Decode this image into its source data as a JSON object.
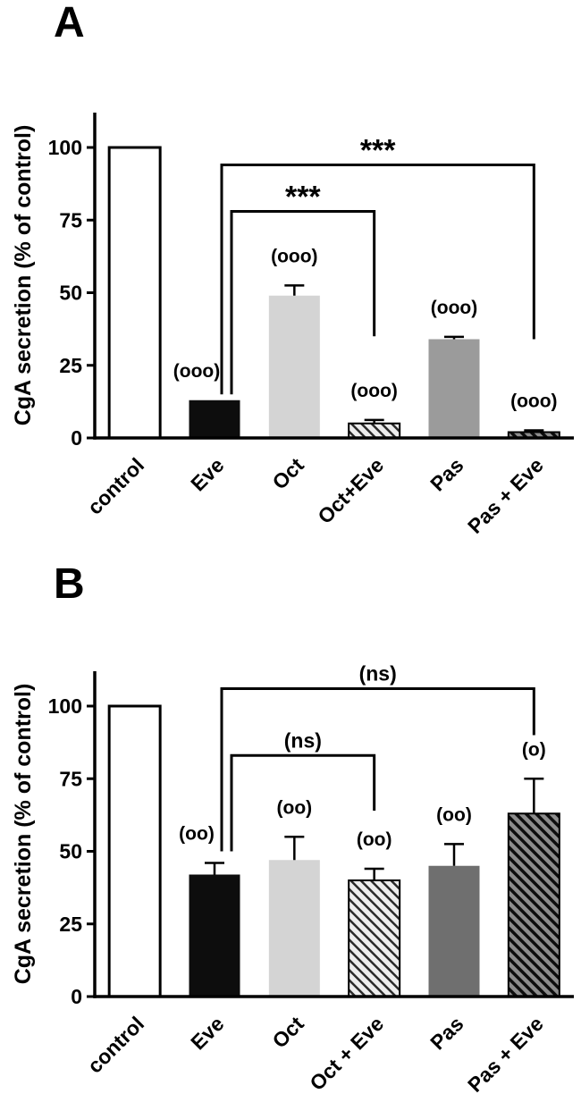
{
  "figure": {
    "background": "#ffffff",
    "panels": [
      {
        "label": "A"
      },
      {
        "label": "B"
      }
    ]
  },
  "chart_data": [
    {
      "type": "bar",
      "panel": "A",
      "title": "",
      "xlabel": "",
      "ylabel": "CgA secretion (% of control)",
      "ylim": [
        0,
        112
      ],
      "yticks": [
        0,
        25,
        50,
        75,
        100
      ],
      "grid": false,
      "legend": "none",
      "categories": [
        "control",
        "Eve",
        "Oct",
        "Oct+Eve",
        "Pas",
        "Pas + Eve"
      ],
      "values": [
        100,
        13,
        49,
        5,
        34,
        2
      ],
      "errors": [
        0,
        0,
        3.5,
        1.2,
        0.8,
        0.6
      ],
      "bar_labels": [
        "",
        "(ooo)",
        "(ooo)",
        "(ooo)",
        "(ooo)",
        "(ooo)"
      ],
      "bar_label_dx": [
        0,
        -20,
        0,
        0,
        0,
        0
      ],
      "bar_styles": [
        {
          "fill": "#ffffff",
          "stroke": "#000000",
          "stroke_width": 3,
          "hatch": false
        },
        {
          "fill": "#0d0d0d",
          "stroke": "none",
          "stroke_width": 0,
          "hatch": false
        },
        {
          "fill": "#d4d4d4",
          "stroke": "none",
          "stroke_width": 0,
          "hatch": false
        },
        {
          "fill": "#ededed",
          "stroke": "#000000",
          "stroke_width": 2,
          "hatch": true,
          "hatch_color": "#2a2a2a",
          "hatch_width": 2.5
        },
        {
          "fill": "#9b9b9b",
          "stroke": "none",
          "stroke_width": 0,
          "hatch": false
        },
        {
          "fill": "#8c8c8c",
          "stroke": "#000000",
          "stroke_width": 2,
          "hatch": true,
          "hatch_color": "#0d0d0d",
          "hatch_width": 3.5
        }
      ],
      "significance": [
        {
          "from": "Eve",
          "to": "Pas + Eve",
          "label": "***",
          "bar_y": 94,
          "left_drop": 15,
          "right_drop": 34,
          "left_dx": 8,
          "right_dx": 0
        },
        {
          "from": "Eve",
          "to": "Oct+Eve",
          "label": "***",
          "bar_y": 78,
          "left_drop": 15,
          "right_drop": 35,
          "left_dx": 19,
          "right_dx": 0
        }
      ]
    },
    {
      "type": "bar",
      "panel": "B",
      "title": "",
      "xlabel": "",
      "ylabel": "CgA secretion (% of control)",
      "ylim": [
        0,
        112
      ],
      "yticks": [
        0,
        25,
        50,
        75,
        100
      ],
      "grid": false,
      "legend": "none",
      "categories": [
        "control",
        "Eve",
        "Oct",
        "Oct + Eve",
        "Pas",
        "Pas + Eve"
      ],
      "values": [
        100,
        42,
        47,
        40,
        45,
        63
      ],
      "errors": [
        0,
        4,
        8,
        4,
        7.5,
        12
      ],
      "bar_labels": [
        "",
        "(oo)",
        "(oo)",
        "(oo)",
        "(oo)",
        "(o)"
      ],
      "bar_label_dx": [
        0,
        -20,
        0,
        0,
        0,
        0
      ],
      "bar_styles": [
        {
          "fill": "#ffffff",
          "stroke": "#000000",
          "stroke_width": 3,
          "hatch": false
        },
        {
          "fill": "#0d0d0d",
          "stroke": "none",
          "stroke_width": 0,
          "hatch": false
        },
        {
          "fill": "#d4d4d4",
          "stroke": "none",
          "stroke_width": 0,
          "hatch": false
        },
        {
          "fill": "#ededed",
          "stroke": "#000000",
          "stroke_width": 2,
          "hatch": true,
          "hatch_color": "#2a2a2a",
          "hatch_width": 2.5
        },
        {
          "fill": "#6f6f6f",
          "stroke": "none",
          "stroke_width": 0,
          "hatch": false
        },
        {
          "fill": "#8c8c8c",
          "stroke": "#000000",
          "stroke_width": 2,
          "hatch": true,
          "hatch_color": "#0d0d0d",
          "hatch_width": 3.5
        }
      ],
      "significance": [
        {
          "from": "Eve",
          "to": "Pas + Eve",
          "label": "(ns)",
          "bar_y": 106,
          "left_drop": 50,
          "right_drop": 90,
          "left_dx": 8,
          "right_dx": 0
        },
        {
          "from": "Eve",
          "to": "Oct + Eve",
          "label": "(ns)",
          "bar_y": 83,
          "left_drop": 50,
          "right_drop": 64,
          "left_dx": 19,
          "right_dx": 0
        }
      ]
    }
  ]
}
